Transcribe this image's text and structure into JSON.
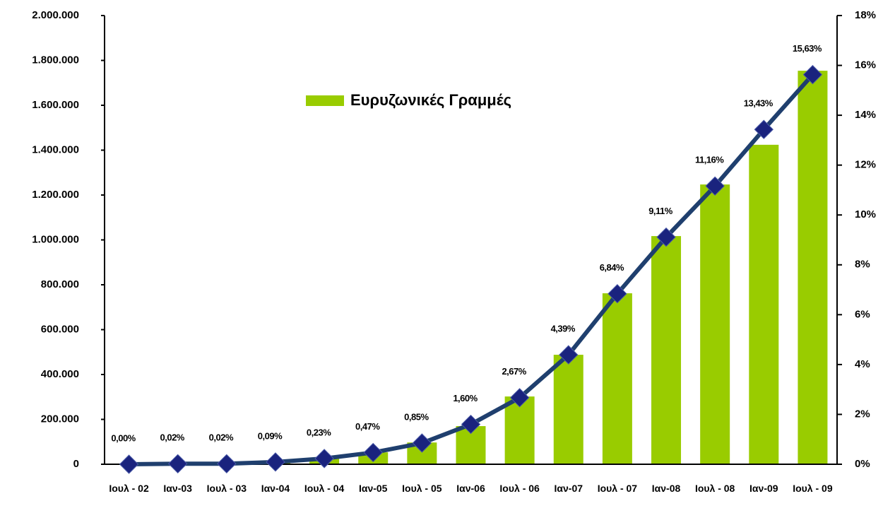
{
  "chart_data": {
    "type": "bar",
    "categories": [
      "Ιουλ - 02",
      "Ιαν-03",
      "Ιουλ - 03",
      "Ιαν-04",
      "Ιουλ - 04",
      "Ιαν-05",
      "Ιουλ - 05",
      "Ιαν-06",
      "Ιουλ - 06",
      "Ιαν-07",
      "Ιουλ - 07",
      "Ιαν-08",
      "Ιουλ - 08",
      "Ιαν-09",
      "Ιουλ - 09"
    ],
    "series": [
      {
        "name": "Ευρυζωνικές Γραμμές",
        "type": "bar",
        "color": "#99cc00",
        "values": [
          0,
          2000,
          3000,
          11000,
          28000,
          53000,
          97000,
          170000,
          302000,
          488000,
          762000,
          1017000,
          1247000,
          1424000,
          1754000
        ]
      },
      {
        "type": "line",
        "axis": "y2",
        "color": "#1f3f6e",
        "marker_color": "#1a237e",
        "values": [
          0.0,
          0.02,
          0.02,
          0.09,
          0.23,
          0.47,
          0.85,
          1.6,
          2.67,
          4.39,
          6.84,
          9.11,
          11.16,
          13.43,
          15.63
        ],
        "value_labels": [
          "0,00%",
          "0,02%",
          "0,02%",
          "0,09%",
          "0,23%",
          "0,47%",
          "0,85%",
          "1,60%",
          "2,67%",
          "4,39%",
          "6,84%",
          "9,11%",
          "11,16%",
          "13,43%",
          "15,63%"
        ]
      }
    ],
    "ylim": [
      0,
      2000000
    ],
    "yticks": [
      0,
      {
        "value": 200000,
        "label": "200.000"
      },
      {
        "value": 400000,
        "label": "400.000"
      },
      {
        "value": 600000,
        "label": "600.000"
      },
      {
        "value": 800000,
        "label": "800.000"
      },
      {
        "value": 1000000,
        "label": "1.000.000"
      },
      {
        "value": 1200000,
        "label": "1.200.000"
      },
      {
        "value": 1400000,
        "label": "1.400.000"
      },
      {
        "value": 1600000,
        "label": "1.600.000"
      },
      {
        "value": 1800000,
        "label": "1.800.000"
      },
      {
        "value": 2000000,
        "label": "2.000.000"
      }
    ],
    "y2lim": [
      0,
      18
    ],
    "y2ticks": [
      {
        "value": 0,
        "label": "0%"
      },
      {
        "value": 2,
        "label": "2%"
      },
      {
        "value": 4,
        "label": "4%"
      },
      {
        "value": 6,
        "label": "6%"
      },
      {
        "value": 8,
        "label": "8%"
      },
      {
        "value": 10,
        "label": "10%"
      },
      {
        "value": 12,
        "label": "12%"
      },
      {
        "value": 14,
        "label": "14%"
      },
      {
        "value": 16,
        "label": "16%"
      },
      {
        "value": 18,
        "label": "18%"
      }
    ],
    "legend": "top-left",
    "grid": false
  }
}
